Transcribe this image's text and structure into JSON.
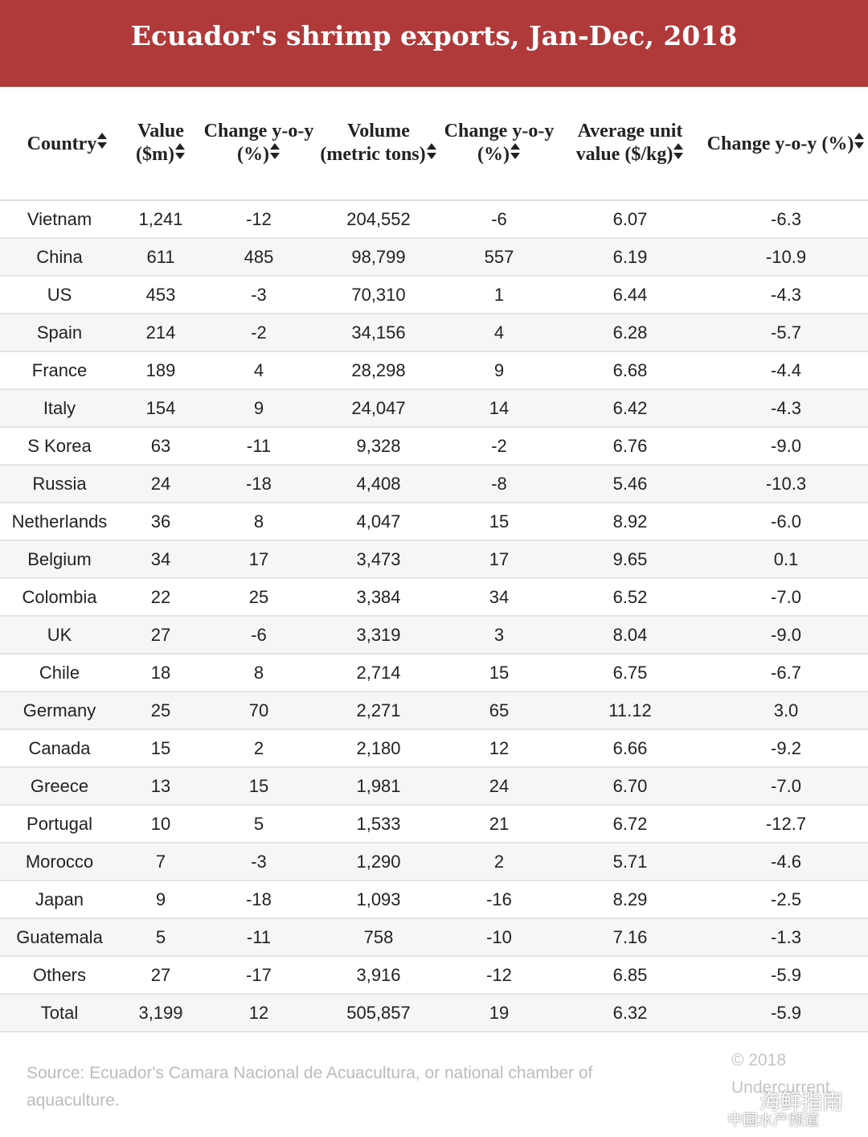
{
  "header": {
    "title": "Ecuador's shrimp exports, Jan-Dec, 2018"
  },
  "table": {
    "columns": [
      "Country",
      "Value ($m)",
      "Change y-o-y (%)",
      "Volume (metric tons)",
      "Change y-o-y (%)",
      "Average unit value ($/kg)",
      "Change y-o-y (%)"
    ],
    "rows": [
      [
        "Vietnam",
        "1,241",
        "-12",
        "204,552",
        "-6",
        "6.07",
        "-6.3"
      ],
      [
        "China",
        "611",
        "485",
        "98,799",
        "557",
        "6.19",
        "-10.9"
      ],
      [
        "US",
        "453",
        "-3",
        "70,310",
        "1",
        "6.44",
        "-4.3"
      ],
      [
        "Spain",
        "214",
        "-2",
        "34,156",
        "4",
        "6.28",
        "-5.7"
      ],
      [
        "France",
        "189",
        "4",
        "28,298",
        "9",
        "6.68",
        "-4.4"
      ],
      [
        "Italy",
        "154",
        "9",
        "24,047",
        "14",
        "6.42",
        "-4.3"
      ],
      [
        "S Korea",
        "63",
        "-11",
        "9,328",
        "-2",
        "6.76",
        "-9.0"
      ],
      [
        "Russia",
        "24",
        "-18",
        "4,408",
        "-8",
        "5.46",
        "-10.3"
      ],
      [
        "Netherlands",
        "36",
        "8",
        "4,047",
        "15",
        "8.92",
        "-6.0"
      ],
      [
        "Belgium",
        "34",
        "17",
        "3,473",
        "17",
        "9.65",
        "0.1"
      ],
      [
        "Colombia",
        "22",
        "25",
        "3,384",
        "34",
        "6.52",
        "-7.0"
      ],
      [
        "UK",
        "27",
        "-6",
        "3,319",
        "3",
        "8.04",
        "-9.0"
      ],
      [
        "Chile",
        "18",
        "8",
        "2,714",
        "15",
        "6.75",
        "-6.7"
      ],
      [
        "Germany",
        "25",
        "70",
        "2,271",
        "65",
        "11.12",
        "3.0"
      ],
      [
        "Canada",
        "15",
        "2",
        "2,180",
        "12",
        "6.66",
        "-9.2"
      ],
      [
        "Greece",
        "13",
        "15",
        "1,981",
        "24",
        "6.70",
        "-7.0"
      ],
      [
        "Portugal",
        "10",
        "5",
        "1,533",
        "21",
        "6.72",
        "-12.7"
      ],
      [
        "Morocco",
        "7",
        "-3",
        "1,290",
        "2",
        "5.71",
        "-4.6"
      ],
      [
        "Japan",
        "9",
        "-18",
        "1,093",
        "-16",
        "8.29",
        "-2.5"
      ],
      [
        "Guatemala",
        "5",
        "-11",
        "758",
        "-10",
        "7.16",
        "-1.3"
      ],
      [
        "Others",
        "27",
        "-17",
        "3,916",
        "-12",
        "6.85",
        "-5.9"
      ],
      [
        "Total",
        "3,199",
        "12",
        "505,857",
        "19",
        "6.32",
        "-5.9"
      ]
    ]
  },
  "footer": {
    "source": "Source: Ecuador's Camara Nacional de Acuacultura, or national chamber of aquaculture.",
    "copyright": "© 2018",
    "publisher": "Undercurrent"
  },
  "watermark": {
    "name": "海鲜指南",
    "channel": "中国水产频道"
  }
}
